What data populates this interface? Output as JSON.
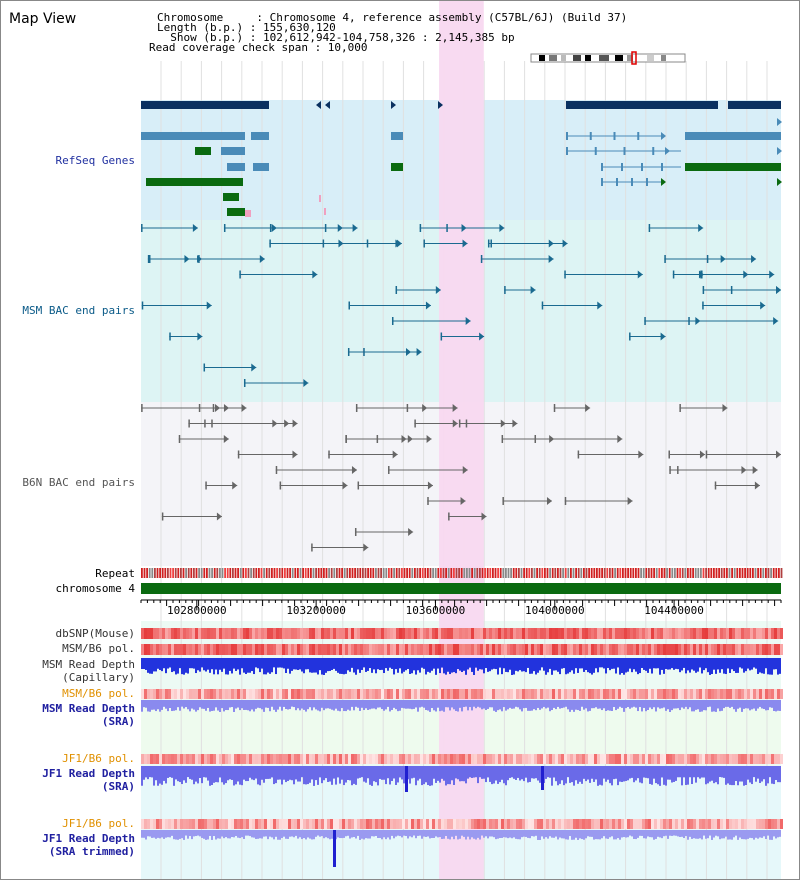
{
  "header": {
    "title": "Map View",
    "info_lines": [
      "Chromosome     : Chromosome 4, reference assembly (C57BL/6J) (Build 37)",
      "Length (b.p.) : 155,630,120",
      "  Show (b.p.) : 102,612,942-104,758,326 : 2,145,385 bp",
      "Read coverage check span : 10,000"
    ]
  },
  "view": {
    "start": 102612942,
    "end": 104758326,
    "highlight_start": 103612000,
    "highlight_end": 103762000
  },
  "tracks": {
    "refseq": "RefSeq Genes",
    "msm_bac": "MSM BAC end pairs",
    "b6n_bac": "B6N BAC end pairs",
    "repeat": "Repeat",
    "chromosome": "chromosome 4",
    "dbsnp": "dbSNP(Mouse)",
    "msm_b6_pol_1": "MSM/B6 pol.",
    "msm_depth_cap": "MSM Read Depth\n(Capillary)",
    "msm_b6_pol_2": "MSM/B6 pol.",
    "msm_depth_sra": "MSM Read Depth\n(SRA)",
    "jf1_b6_pol_1": "JF1/B6 pol.",
    "jf1_depth_sra": "JF1 Read Depth\n(SRA)",
    "jf1_b6_pol_2": "JF1/B6 pol.",
    "jf1_depth_trim": "JF1 Read Depth\n(SRA trimmed)"
  },
  "axis": {
    "ticks": [
      "102800000",
      "103200000",
      "103600000",
      "104000000",
      "104400000"
    ],
    "tick_values": [
      102800000,
      103200000,
      103600000,
      104000000,
      104400000
    ]
  },
  "colors": {
    "gene_dark": "#0a3060",
    "gene_mid": "#4a8bb8",
    "gene_green": "#0a6a10",
    "refseq_bg": "#d8eef8",
    "msm_bg": "#ddf4f4",
    "b6n_bg": "#f4f4f8",
    "highlight": "#f8d8f0",
    "msm_label": "#0a5a88",
    "b6n_label": "#555555",
    "refseq_label": "#2030a0",
    "orange_label": "#e09000",
    "blue_label": "#2020a0"
  }
}
